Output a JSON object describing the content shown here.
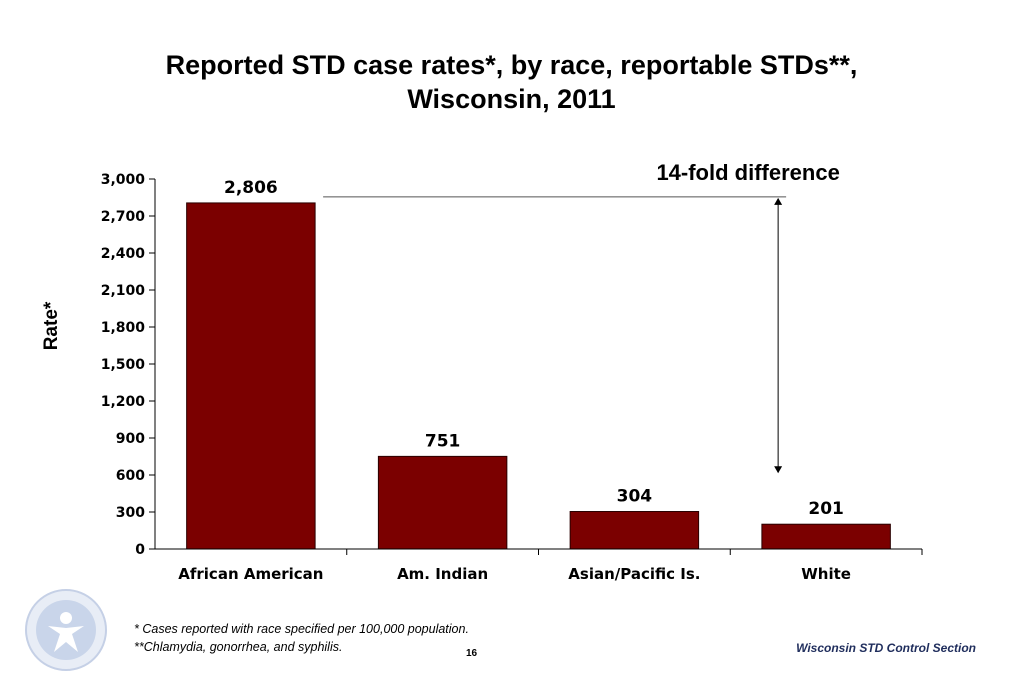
{
  "title_line1": "Reported STD case rates*, by race, reportable STDs**,",
  "title_line2": "Wisconsin, 2011",
  "annotation": "14-fold difference",
  "footnotes": {
    "line1": "*  Cases reported with race specified per 100,000 population.",
    "line2": "**Chlamydia, gonorrhea, and syphilis."
  },
  "page_number": "16",
  "source": "Wisconsin STD Control Section",
  "logo": "seal-icon",
  "colors": {
    "bar": "#7B0000",
    "bar_edge": "#2a0000"
  },
  "chart_data": {
    "type": "bar",
    "title": "Reported STD case rates*, by race, reportable STDs**, Wisconsin, 2011",
    "xlabel": "",
    "ylabel": "Rate*",
    "categories": [
      "African American",
      "Am. Indian",
      "Asian/Pacific Is.",
      "White"
    ],
    "values": [
      2806,
      751,
      304,
      201
    ],
    "value_labels": [
      "2,806",
      "751",
      "304",
      "201"
    ],
    "ylim": [
      0,
      3000
    ],
    "yticks": [
      0,
      300,
      600,
      900,
      1200,
      1500,
      1800,
      2100,
      2400,
      2700,
      3000
    ],
    "ytick_labels": [
      "0",
      "300",
      "600",
      "900",
      "1,200",
      "1,500",
      "1,800",
      "2,100",
      "2,400",
      "2,700",
      "3,000"
    ],
    "grid": false,
    "legend": "none"
  }
}
